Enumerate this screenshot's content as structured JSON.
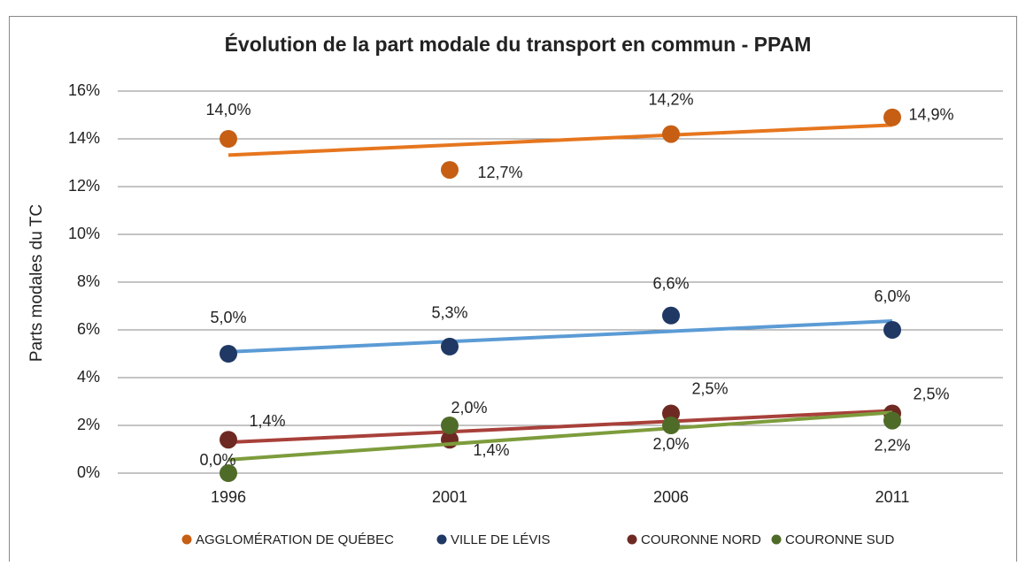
{
  "chart_data": {
    "type": "scatter",
    "title": "Évolution de la part modale du transport en commun - PPAM",
    "y_label": "Parts modales du TC",
    "categories": [
      "1996",
      "2001",
      "2006",
      "2011"
    ],
    "ylim": [
      0,
      16
    ],
    "yticks": [
      {
        "value": 0,
        "label": "0%"
      },
      {
        "value": 2,
        "label": "2%"
      },
      {
        "value": 4,
        "label": "4%"
      },
      {
        "value": 6,
        "label": "6%"
      },
      {
        "value": 8,
        "label": "8%"
      },
      {
        "value": 10,
        "label": "10%"
      },
      {
        "value": 12,
        "label": "12%"
      },
      {
        "value": 14,
        "label": "14%"
      },
      {
        "value": 16,
        "label": "16%"
      }
    ],
    "grid": true,
    "trendline": "linear",
    "legend": "bottom",
    "series": [
      {
        "name": "AGGLOMÉRATION DE QUÉBEC",
        "color": "#c65f14",
        "trendline_color": "#e6761e",
        "values": [
          14.0,
          12.7,
          14.2,
          14.9
        ],
        "value_labels": [
          "14,0%",
          "12,7%",
          "14,2%",
          "14,9%"
        ]
      },
      {
        "name": "VILLE DE LÉVIS",
        "color": "#1f3864",
        "trendline_color": "#5b9bd5",
        "values": [
          5.0,
          5.3,
          6.6,
          6.0
        ],
        "value_labels": [
          "5,0%",
          "5,3%",
          "6,6%",
          "6,0%"
        ]
      },
      {
        "name": "COURONNE NORD",
        "color": "#6e2a22",
        "trendline_color": "#a8403a",
        "values": [
          1.4,
          1.4,
          2.5,
          2.5
        ],
        "value_labels": [
          "1,4%",
          "1,4%",
          "2,5%",
          "2,5%"
        ]
      },
      {
        "name": "COURONNE SUD",
        "color": "#4f6b28",
        "trendline_color": "#7d9c3c",
        "values": [
          0.0,
          2.0,
          2.0,
          2.2
        ],
        "value_labels": [
          "0,0%",
          "2,0%",
          "2,0%",
          "2,2%"
        ]
      }
    ]
  }
}
